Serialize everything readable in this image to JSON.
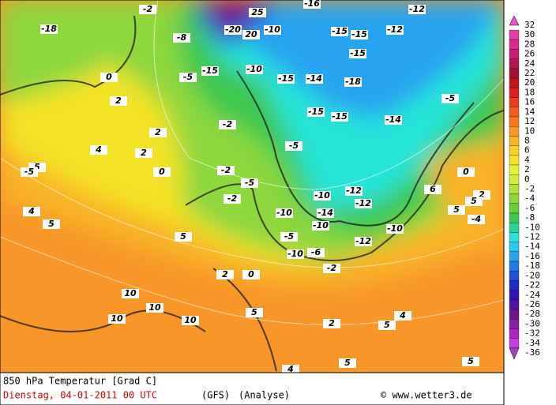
{
  "map": {
    "contour_labels": [
      "-18",
      "-2",
      "-8",
      "25",
      "20",
      "-20",
      "-10",
      "-16",
      "-15",
      "-15",
      "-12",
      "-12",
      "-15",
      "0",
      "-5",
      "-15",
      "-10",
      "-15",
      "-14",
      "-18",
      "-15",
      "-15",
      "-14",
      "-5",
      "-5",
      "-10",
      "-12",
      "-14",
      "-2",
      "2",
      "2",
      "4",
      "2",
      "0",
      "5",
      "5",
      "-2",
      "-2",
      "-5",
      "-10",
      "-12",
      "-10",
      "-10",
      "-12",
      "-10",
      "-5",
      "-6",
      "-2",
      "5",
      "0",
      "2",
      "0",
      "-4",
      "6",
      "-5",
      "5",
      "4",
      "10",
      "10",
      "10",
      "10",
      "5",
      "2",
      "5",
      "4",
      "5",
      "5",
      "4",
      "5",
      "2"
    ]
  },
  "legend": {
    "values": [
      32,
      30,
      28,
      26,
      24,
      22,
      20,
      18,
      16,
      14,
      12,
      10,
      8,
      6,
      4,
      2,
      0,
      -2,
      -4,
      -6,
      -8,
      -10,
      -12,
      -14,
      -16,
      -18,
      -20,
      -22,
      -24,
      -26,
      -28,
      -30,
      -32,
      -34,
      -36
    ],
    "colors": [
      "#f050c8",
      "#e43caa",
      "#dc2890",
      "#cc1c74",
      "#b41450",
      "#a01034",
      "#c01818",
      "#dc2020",
      "#f03c1e",
      "#f85a1e",
      "#f8781e",
      "#f89628",
      "#f8b428",
      "#f8d028",
      "#f4e228",
      "#e8f03c",
      "#d4ec3c",
      "#b4e23c",
      "#8cd83c",
      "#64d040",
      "#3cc850",
      "#28d696",
      "#28e4d8",
      "#28c8f0",
      "#28a4f0",
      "#1e7ce6",
      "#1e54dc",
      "#1e2cc8",
      "#3214b4",
      "#5014a0",
      "#6e148c",
      "#8c1eaa",
      "#aa28c8",
      "#c83ce6",
      "#aa3cc8"
    ]
  },
  "footer": {
    "title": "850 hPa Temperatur [Grad C]",
    "date": "Dienstag, 04-01-2011   00 UTC",
    "model": "(GFS)",
    "analysis": "(Analyse)",
    "credit": "© www.wetter3.de"
  }
}
